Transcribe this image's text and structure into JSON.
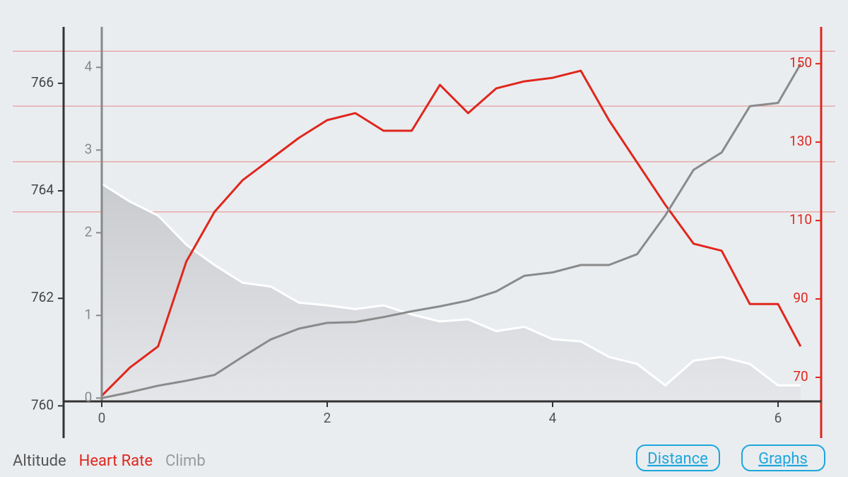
{
  "chart_data": {
    "type": "line",
    "x": [
      0,
      0.25,
      0.5,
      0.75,
      1,
      1.25,
      1.5,
      1.75,
      2,
      2.25,
      2.5,
      2.75,
      3,
      3.25,
      3.5,
      3.75,
      4,
      4.25,
      4.5,
      4.75,
      5,
      5.25,
      5.5,
      5.75,
      6,
      6.2
    ],
    "series": [
      {
        "name": "Altitude",
        "color": "#ffffff",
        "axis": "y",
        "area": true,
        "values": [
          764.13,
          763.8,
          763.54,
          763.0,
          762.62,
          762.29,
          762.22,
          761.92,
          761.87,
          761.8,
          761.87,
          761.7,
          761.57,
          761.61,
          761.39,
          761.47,
          761.24,
          761.2,
          760.91,
          760.78,
          760.38,
          760.84,
          760.91,
          760.78,
          760.38,
          760.38
        ]
      },
      {
        "name": "Heart Rate",
        "color": "#e0261c",
        "axis": "y2",
        "values": [
          65.3,
          72.5,
          77.9,
          99.5,
          112.2,
          120.3,
          125.7,
          131.1,
          135.6,
          137.4,
          132.9,
          132.9,
          144.6,
          137.4,
          143.7,
          145.5,
          146.4,
          148.2,
          135.6,
          124.8,
          114.0,
          104.1,
          102.3,
          88.7,
          88.7,
          77.9
        ]
      },
      {
        "name": "Climb",
        "color": "#8a8a8a",
        "axis": "y3",
        "values": [
          0,
          0.07,
          0.15,
          0.21,
          0.28,
          0.5,
          0.71,
          0.84,
          0.91,
          0.92,
          0.98,
          1.05,
          1.11,
          1.18,
          1.29,
          1.48,
          1.52,
          1.61,
          1.61,
          1.74,
          2.21,
          2.76,
          2.97,
          3.53,
          3.57,
          4.04
        ]
      }
    ],
    "xlim": [
      0,
      6.37
    ],
    "xticks": [
      0,
      2,
      4,
      6
    ],
    "ylim": [
      759.4,
      767.05
    ],
    "yticks": [
      760,
      762,
      764,
      766
    ],
    "y2lim": [
      54.5,
      159.4
    ],
    "y2ticks": [
      70,
      90,
      110,
      130,
      150
    ],
    "y3lim": [
      -0.04,
      4.49
    ],
    "y3ticks": [
      0,
      1,
      2,
      3,
      4
    ],
    "hr_zones": [
      153.2,
      139.2,
      125.0,
      112.2
    ],
    "zone_color": "#e88a86"
  },
  "buttons": [
    "Distance",
    "Graphs"
  ]
}
